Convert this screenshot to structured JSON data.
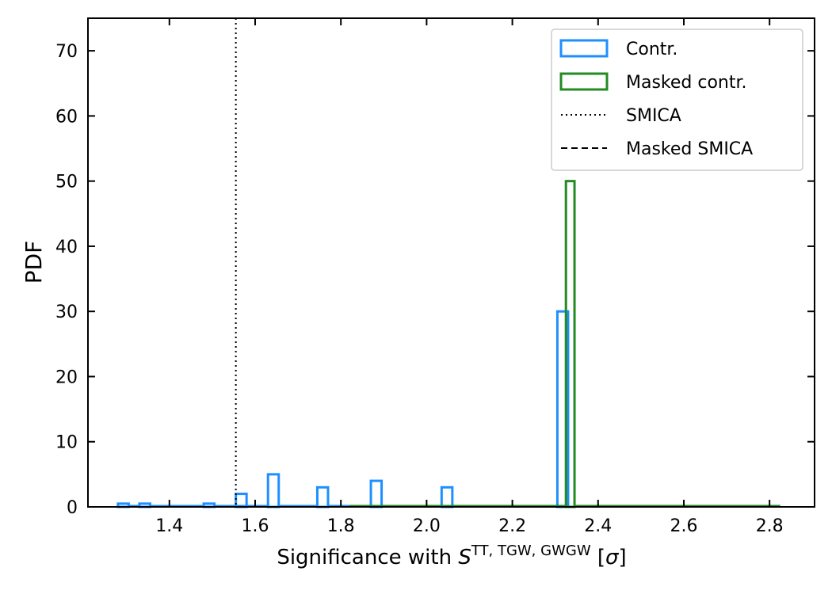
{
  "chart_data": {
    "type": "histogram",
    "xlabel": {
      "prefix": "Significance with ",
      "symbol": "S",
      "superscript": "TT, TGW, GWGW",
      "suffix_open": " [",
      "sigma": "σ",
      "suffix_close": "]"
    },
    "ylabel": "PDF",
    "xlim": [
      1.21,
      2.905
    ],
    "ylim": [
      0,
      75
    ],
    "xticks": [
      1.4,
      1.6,
      1.8,
      2.0,
      2.2,
      2.4,
      2.6,
      2.8
    ],
    "xtick_labels": [
      "1.4",
      "1.6",
      "1.8",
      "2.0",
      "2.2",
      "2.4",
      "2.6",
      "2.8"
    ],
    "yticks": [
      0,
      10,
      20,
      30,
      40,
      50,
      60,
      70
    ],
    "ytick_labels": [
      "0",
      "10",
      "20",
      "30",
      "40",
      "50",
      "60",
      "70"
    ],
    "series": [
      {
        "name": "Contr.",
        "style": "step",
        "color": "#1e8fff",
        "bins": [
          [
            1.28,
            1.305,
            0.5
          ],
          [
            1.305,
            1.33,
            0
          ],
          [
            1.33,
            1.355,
            0.5
          ],
          [
            1.355,
            1.48,
            0
          ],
          [
            1.48,
            1.505,
            0.5
          ],
          [
            1.505,
            1.58,
            0
          ],
          [
            1.555,
            1.58,
            2
          ],
          [
            1.58,
            1.63,
            0
          ],
          [
            1.63,
            1.655,
            5
          ],
          [
            1.655,
            1.745,
            0
          ],
          [
            1.745,
            1.77,
            3
          ],
          [
            1.77,
            1.87,
            0
          ],
          [
            1.87,
            1.895,
            4
          ],
          [
            1.895,
            2.035,
            0
          ],
          [
            2.035,
            2.06,
            3
          ],
          [
            2.06,
            2.305,
            0
          ],
          [
            2.305,
            2.33,
            30
          ]
        ]
      },
      {
        "name": "Masked contr.",
        "style": "step",
        "color": "#228b22",
        "bins": [
          [
            1.82,
            2.325,
            0
          ],
          [
            2.325,
            2.345,
            50
          ],
          [
            2.345,
            2.825,
            0
          ]
        ]
      }
    ],
    "reference_lines": [
      {
        "name": "SMICA",
        "x": 1.555,
        "style": "dotted",
        "color": "#000000"
      },
      {
        "name": "Masked SMICA",
        "style": "dashed",
        "color": "#000000"
      }
    ],
    "legend": {
      "placement": "top-right",
      "entries": [
        {
          "label": "Contr.",
          "kind": "patch",
          "color": "#1e8fff"
        },
        {
          "label": "Masked contr.",
          "kind": "patch",
          "color": "#228b22"
        },
        {
          "label": "SMICA",
          "kind": "dotted-line",
          "color": "#000000"
        },
        {
          "label": "Masked SMICA",
          "kind": "dashed-line",
          "color": "#000000"
        }
      ]
    },
    "grid": false
  }
}
